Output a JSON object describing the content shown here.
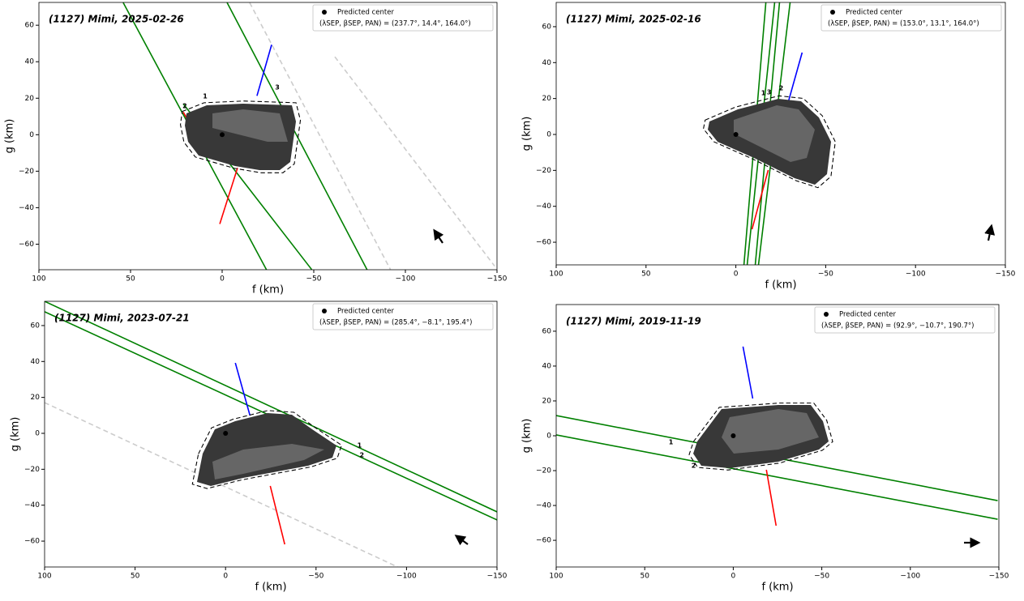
{
  "chart_data": [
    {
      "type": "scatter",
      "title": "(1127) Mimi, 2025-02-26",
      "xlabel": "f (km)",
      "ylabel": "g (km)",
      "pole": "(λSEP, βSEP, PAN) = (237.7°, 14.4°, 164.0°)",
      "xlim": [
        100,
        -150
      ],
      "ylim": [
        -74,
        72.5
      ],
      "xticks": [
        100,
        50,
        0,
        {
          "value": -50,
          "label": "−50"
        },
        {
          "value": -100,
          "label": "−100"
        },
        {
          "value": -150,
          "label": "−150"
        }
      ],
      "yticks": [
        {
          "value": -60,
          "label": "−60"
        },
        {
          "value": -40,
          "label": "−40"
        },
        {
          "value": -20,
          "label": "−20"
        },
        0,
        20,
        40,
        60
      ],
      "series": [
        {
          "name": "Predicted center",
          "color": "#000000",
          "x": [
            0
          ],
          "values": [
            0
          ]
        }
      ],
      "lines": [
        {
          "color": "#cccccc",
          "style": "dashed",
          "f": [
            -15.0,
            -92.0
          ],
          "g": [
            72.4,
            -74.2
          ]
        },
        {
          "color": "#cccccc",
          "style": "dashed",
          "f": [
            -61.5,
            -148.7
          ],
          "g": [
            42.7,
            -72.0
          ]
        },
        {
          "color": "#008000",
          "f": [
            54.0,
            -24.3
          ],
          "g": [
            72.4,
            -74.2
          ]
        },
        {
          "color": "#008000",
          "f": [
            -2.7,
            -79.2
          ],
          "g": [
            72.4,
            -74.2
          ]
        },
        {
          "color": "#008000",
          "f": [
            21.2,
            -49.1
          ],
          "g": [
            16.9,
            -74.2
          ]
        },
        {
          "color": "#0000ff",
          "f": [
            -27.0,
            -19.0
          ],
          "g": [
            49.3,
            21.3
          ]
        },
        {
          "color": "#ff0000",
          "f": [
            1.3,
            -8.4
          ],
          "g": [
            -48.9,
            -18.2
          ]
        },
        {
          "color": "#ff0000",
          "f": [
            21.2,
            17.7
          ],
          "g": [
            12.4,
            6.2
          ]
        },
        {
          "color": "#ff0000",
          "f": [
            -37.2,
            -38.9
          ],
          "g": [
            6.2,
            2.7
          ]
        }
      ],
      "annotations": [
        {
          "text": "1",
          "f": 9.3,
          "g": 20.9
        },
        {
          "text": "2",
          "f": 20.4,
          "g": 15.6
        },
        {
          "text": "3",
          "f": -30.1,
          "g": 25.8
        }
      ]
    },
    {
      "type": "scatter",
      "title": "(1127) Mimi, 2025-02-16",
      "xlabel": "f (km)",
      "ylabel": "g (km)",
      "pole": "(λSEP, βSEP, PAN) = (153.0°, 13.1°, 164.0°)",
      "xlim": [
        100,
        -150
      ],
      "ylim": [
        -72.6,
        73.5
      ],
      "xticks": [
        100,
        50,
        0,
        {
          "value": -50,
          "label": "−50"
        },
        {
          "value": -100,
          "label": "−100"
        },
        {
          "value": -150,
          "label": "−150"
        }
      ],
      "yticks": [
        {
          "value": -60,
          "label": "−60"
        },
        {
          "value": -40,
          "label": "−40"
        },
        {
          "value": -20,
          "label": "−20"
        },
        0,
        20,
        40,
        60
      ],
      "series": [
        {
          "name": "Predicted center",
          "color": "#000000",
          "x": [
            0
          ],
          "values": [
            0
          ]
        }
      ],
      "lines": [
        {
          "color": "#008000",
          "f": [
            -16.7,
            -4.5
          ],
          "g": [
            73.5,
            -72.6
          ]
        },
        {
          "color": "#008000",
          "f": [
            -21.6,
            -6.3
          ],
          "g": [
            73.5,
            -72.6
          ]
        },
        {
          "color": "#008000",
          "f": [
            -24.3,
            -10.8
          ],
          "g": [
            73.5,
            -72.6
          ]
        },
        {
          "color": "#008000",
          "f": [
            -30.2,
            -12.6
          ],
          "g": [
            73.5,
            -72.6
          ]
        },
        {
          "color": "#0000ff",
          "f": [
            -36.9,
            -29.3
          ],
          "g": [
            45.6,
            18.5
          ]
        },
        {
          "color": "#ff0000",
          "f": [
            -9.0,
            -18.0
          ],
          "g": [
            -52.8,
            -19.8
          ]
        }
      ],
      "annotations": [
        {
          "text": "1",
          "f": -15.3,
          "g": 23.0
        },
        {
          "text": "3",
          "f": -18.5,
          "g": 23.5
        },
        {
          "text": "2",
          "f": -25.2,
          "g": 25.7
        }
      ]
    },
    {
      "type": "scatter",
      "title": "(1127) Mimi, 2023-07-21",
      "xlabel": "f (km)",
      "ylabel": "g (km)",
      "pole": "(λSEP, βSEP, PAN) = (285.4°, −8.1°, 195.4°)",
      "xlim": [
        100,
        -150
      ],
      "ylim": [
        -74.4,
        73.5
      ],
      "xticks": [
        100,
        50,
        0,
        {
          "value": -50,
          "label": "−50"
        },
        {
          "value": -100,
          "label": "−100"
        },
        {
          "value": -150,
          "label": "−150"
        }
      ],
      "yticks": [
        {
          "value": -60,
          "label": "−60"
        },
        {
          "value": -40,
          "label": "−40"
        },
        {
          "value": -20,
          "label": "−20"
        },
        0,
        20,
        40,
        60
      ],
      "series": [
        {
          "name": "Predicted center",
          "color": "#000000",
          "x": [
            0
          ],
          "values": [
            0
          ]
        }
      ],
      "lines": [
        {
          "color": "#cccccc",
          "style": "dashed",
          "f": [
            100,
            -95.1
          ],
          "g": [
            17.1,
            -74.4
          ]
        },
        {
          "color": "#008000",
          "f": [
            100,
            -150.2
          ],
          "g": [
            73.5,
            -43.8
          ]
        },
        {
          "color": "#008000",
          "f": [
            100,
            -150.2
          ],
          "g": [
            67.7,
            -48.3
          ]
        },
        {
          "color": "#0000ff",
          "f": [
            -5.4,
            -13.5
          ],
          "g": [
            39.2,
            9.9
          ]
        },
        {
          "color": "#ff0000",
          "f": [
            -32.7,
            -24.7
          ],
          "g": [
            -61.8,
            -29.3
          ]
        }
      ],
      "annotations": [
        {
          "text": "1",
          "f": -74.0,
          "g": -6.8
        },
        {
          "text": "2",
          "f": -75.3,
          "g": -12.2
        }
      ]
    },
    {
      "type": "scatter",
      "title": "(1127) Mimi, 2019-11-19",
      "xlabel": "f (km)",
      "ylabel": "g (km)",
      "pole": "(λSEP, βSEP, PAN) = (92.9°, −10.7°, 190.7°)",
      "xlim": [
        100,
        -150
      ],
      "ylim": [
        -75.3,
        75.3
      ],
      "xticks": [
        100,
        50,
        0,
        {
          "value": -50,
          "label": "−50"
        },
        {
          "value": -100,
          "label": "−100"
        },
        {
          "value": -150,
          "label": "−150"
        }
      ],
      "yticks": [
        {
          "value": -60,
          "label": "−60"
        },
        {
          "value": -40,
          "label": "−40"
        },
        {
          "value": -20,
          "label": "−20"
        },
        0,
        20,
        40,
        60
      ],
      "series": [
        {
          "name": "Predicted center",
          "color": "#000000",
          "x": [
            0
          ],
          "values": [
            0
          ]
        }
      ],
      "lines": [
        {
          "color": "#008000",
          "f": [
            100,
            -149.3
          ],
          "g": [
            11.6,
            -37.2
          ]
        },
        {
          "color": "#008000",
          "f": [
            100,
            -149.3
          ],
          "g": [
            0.5,
            -47.9
          ]
        },
        {
          "color": "#0000ff",
          "f": [
            -5.5,
            -11.0
          ],
          "g": [
            51.2,
            21.4
          ]
        },
        {
          "color": "#ff0000",
          "f": [
            -24.2,
            -18.7
          ],
          "g": [
            -51.6,
            -19.5
          ]
        }
      ],
      "annotations": [
        {
          "text": "1",
          "f": 35.2,
          "g": -3.7
        },
        {
          "text": "2",
          "f": 22.4,
          "g": -17.2
        }
      ]
    }
  ]
}
